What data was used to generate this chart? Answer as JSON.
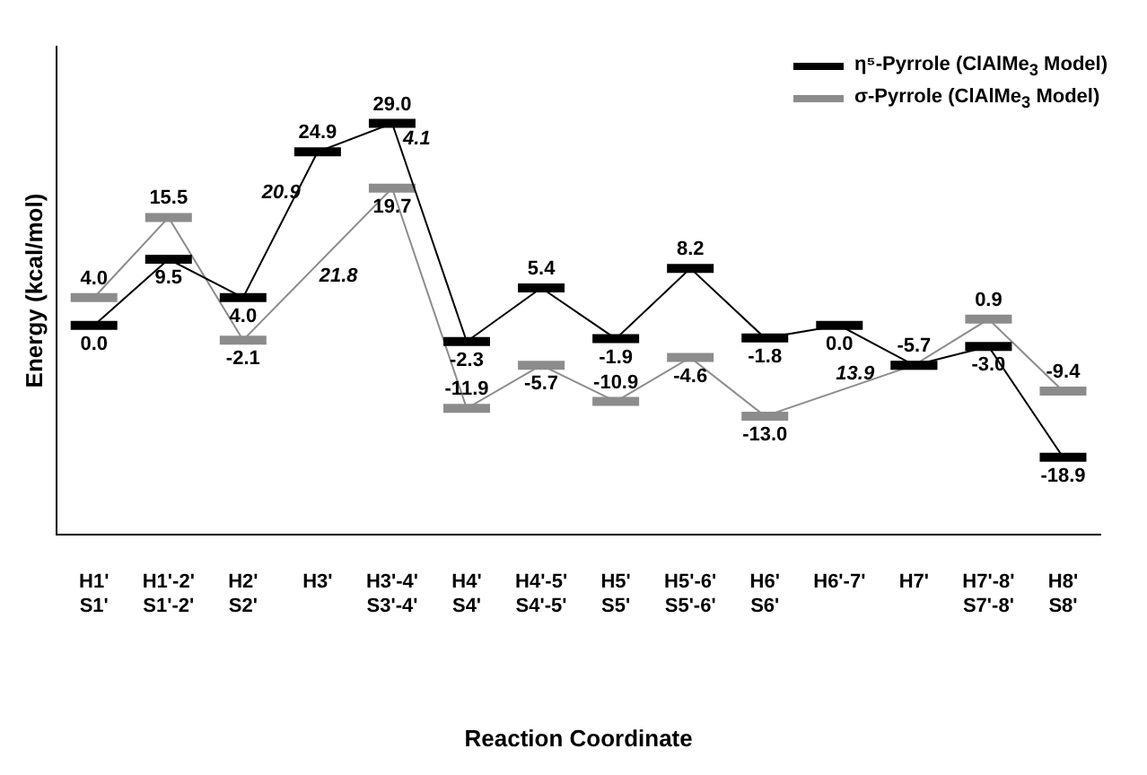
{
  "chart_data": {
    "type": "line",
    "xlabel": "Reaction Coordinate",
    "ylabel": "Energy (kcal/mol)",
    "categories": [
      "H1'\nS1'",
      "H1'-2'\nS1'-2'",
      "H2'\nS2'",
      "H3'",
      "H3'-4'\nS3'-4'",
      "H4'\nS4'",
      "H4'-5'\nS4'-5'",
      "H5'\nS5'",
      "H5'-6'\nS5'-6'",
      "H6'\nS6'",
      "H6'-7'",
      "H7'",
      "H7'-8'\nS7'-8'",
      "H8'\nS8'"
    ],
    "series": [
      {
        "name": "η⁵-Pyrrole (ClAlMe$_{3}$ Model)",
        "color": "#000000",
        "values": [
          0.0,
          9.5,
          4.0,
          24.9,
          29.0,
          -2.3,
          5.4,
          -1.9,
          8.2,
          -1.8,
          0.0,
          -5.7,
          -3.0,
          -18.9
        ],
        "value_labels": [
          "0.0",
          "9.5",
          "4.0",
          "24.9",
          "29.0",
          "-2.3",
          "5.4",
          "-1.9",
          "8.2",
          "-1.8",
          "0.0",
          "-5.7",
          "-3.0",
          "-18.9"
        ]
      },
      {
        "name": "σ-Pyrrole (ClAlMe$_{3}$ Model)",
        "color": "#8c8c8c",
        "values": [
          4.0,
          15.5,
          -2.1,
          null,
          19.7,
          -11.9,
          -5.7,
          -10.9,
          -4.6,
          -13.0,
          null,
          -5.7,
          0.9,
          -9.4
        ],
        "value_labels": [
          "4.0",
          "15.5",
          "-2.1",
          null,
          "19.7",
          "-11.9",
          "-5.7",
          "-10.9",
          "-4.6",
          "-13.0",
          null,
          null,
          "0.9",
          "-9.4"
        ]
      }
    ],
    "annotations": [
      "20.9",
      "4.1",
      "21.8",
      "13.9"
    ],
    "legend": "top right",
    "grid": false
  }
}
